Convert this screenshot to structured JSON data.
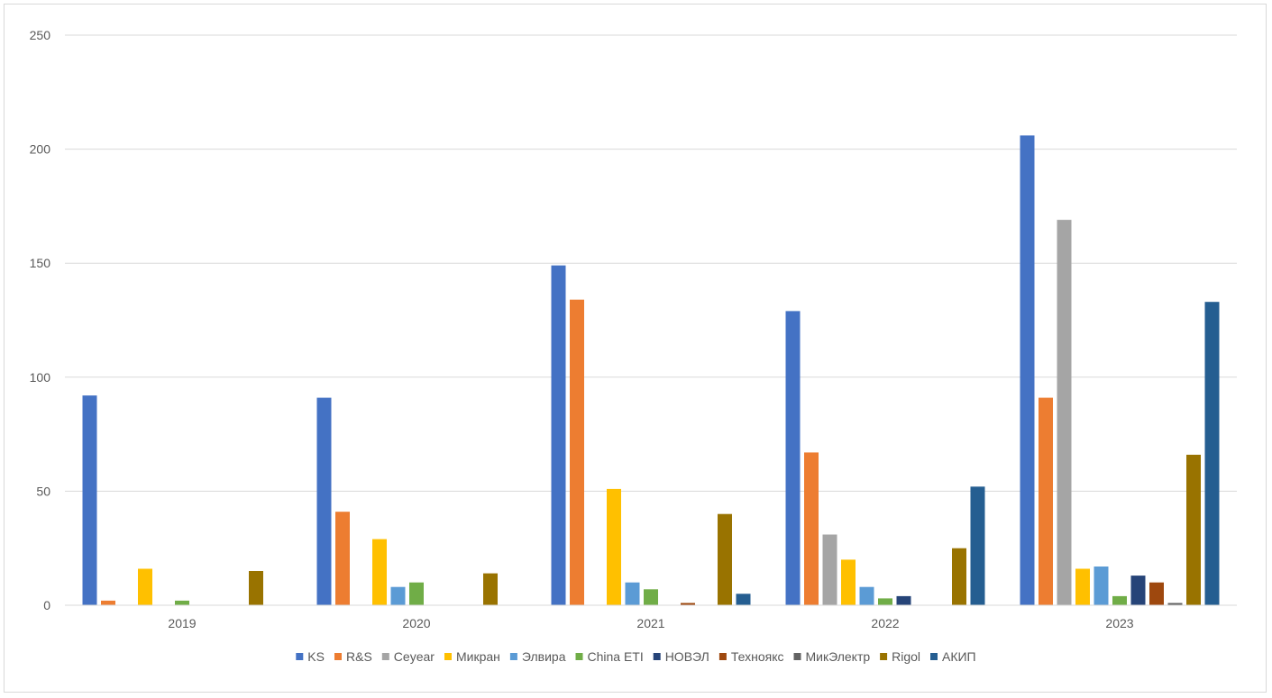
{
  "chart_data": {
    "type": "bar",
    "title": "",
    "xlabel": "",
    "ylabel": "",
    "ylim": [
      0,
      250
    ],
    "yticks": [
      0,
      50,
      100,
      150,
      200,
      250
    ],
    "grid": true,
    "legend_position": "bottom",
    "categories": [
      "2019",
      "2020",
      "2021",
      "2022",
      "2023"
    ],
    "series": [
      {
        "name": "KS",
        "color": "#4472C4",
        "values": [
          92,
          91,
          149,
          129,
          206
        ]
      },
      {
        "name": "R&S",
        "color": "#ED7D31",
        "values": [
          2,
          41,
          134,
          67,
          91
        ]
      },
      {
        "name": "Ceyear",
        "color": "#A5A5A5",
        "values": [
          0,
          0,
          0,
          31,
          169
        ]
      },
      {
        "name": "Микран",
        "color": "#FFC000",
        "values": [
          16,
          29,
          51,
          20,
          16
        ]
      },
      {
        "name": "Элвира",
        "color": "#5B9BD5",
        "values": [
          0,
          8,
          10,
          8,
          17
        ]
      },
      {
        "name": "China ETI",
        "color": "#70AD47",
        "values": [
          2,
          10,
          7,
          3,
          4
        ]
      },
      {
        "name": "НОВЭЛ",
        "color": "#264478",
        "values": [
          0,
          0,
          0,
          4,
          13
        ]
      },
      {
        "name": "Техноякс",
        "color": "#9E480E",
        "values": [
          0,
          0,
          1,
          0,
          10
        ]
      },
      {
        "name": "МикЭлектр",
        "color": "#636363",
        "values": [
          0,
          0,
          0,
          0,
          1
        ]
      },
      {
        "name": "Rigol",
        "color": "#997300",
        "values": [
          15,
          14,
          40,
          25,
          66
        ]
      },
      {
        "name": "АКИП",
        "color": "#255E91",
        "values": [
          0,
          0,
          5,
          52,
          133
        ]
      }
    ]
  }
}
